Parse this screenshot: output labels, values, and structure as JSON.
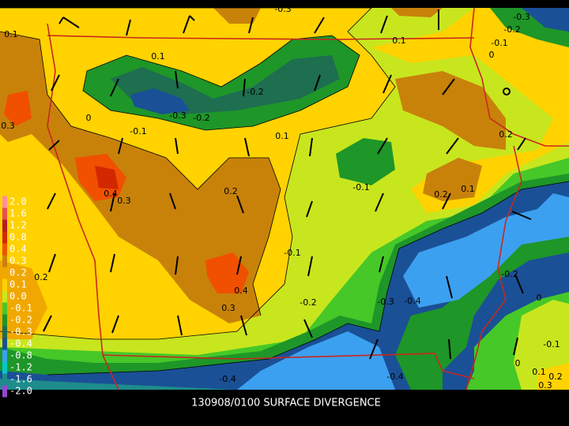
{
  "caption": "130908/0100 SURFACE DIVERGENCE",
  "legend": [
    {
      "label": "2.0",
      "color": "#ff8ca0"
    },
    {
      "label": "1.6",
      "color": "#e65050"
    },
    {
      "label": "1.2",
      "color": "#b41e1e"
    },
    {
      "label": "0.8",
      "color": "#d22800"
    },
    {
      "label": "0.4",
      "color": "#f05000"
    },
    {
      "label": "0.3",
      "color": "#c8820a"
    },
    {
      "label": "0.2",
      "color": "#f0a800"
    },
    {
      "label": "0.1",
      "color": "#ffd200"
    },
    {
      "label": "0.0",
      "color": "#c8e61e"
    },
    {
      "label": "-0.1",
      "color": "#46c828"
    },
    {
      "label": "-0.2",
      "color": "#1e9628"
    },
    {
      "label": "-0.3",
      "color": "#1e6e50"
    },
    {
      "label": "-0.4",
      "color": "#1a5096"
    },
    {
      "label": "-0.8",
      "color": "#3ca0f0"
    },
    {
      "label": "-1.2",
      "color": "#00c8c8"
    },
    {
      "label": "-1.6",
      "color": "#1e8c8c"
    },
    {
      "label": "-2.0",
      "color": "#9646d2"
    }
  ],
  "contour_labels": [
    "-0.3",
    "0.1",
    "0.1",
    "0.1",
    "0.1",
    "-0.3",
    "-0.2",
    "-0.1",
    "0",
    "-0.2",
    "-0.3",
    "-0.2",
    "0",
    "-0.1",
    "0.3",
    "0.2",
    "0.4",
    "0.3",
    "-0.1",
    "0.2",
    "0.1",
    "0.2",
    "-0.1",
    "0.2",
    "0.4",
    "0.3",
    "-0.2",
    "-0.3",
    "-0.4",
    "-0.2",
    "0",
    "-0.1",
    "0",
    "0.1",
    "0.2",
    "-0.4",
    "-0.4",
    "0.3"
  ]
}
